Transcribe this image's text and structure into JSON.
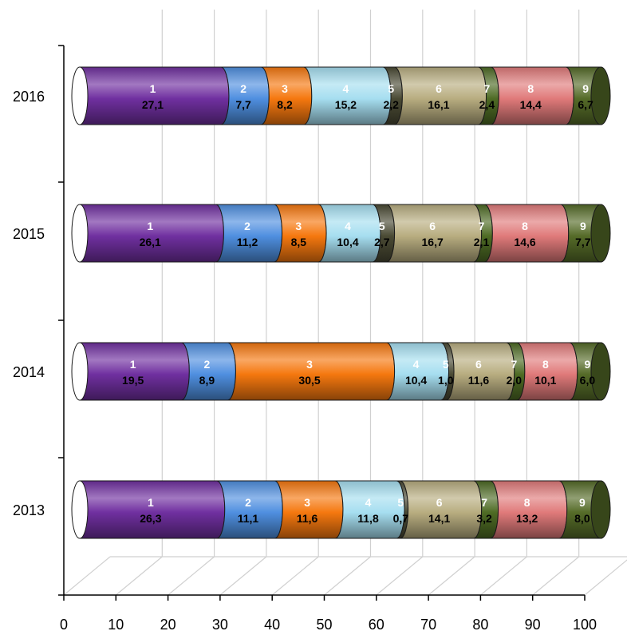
{
  "chart_data": {
    "type": "bar",
    "orientation": "horizontal",
    "stacked": true,
    "style": "3d-cylinder",
    "title": "",
    "xlabel": "",
    "ylabel": "",
    "xlim": [
      0,
      100
    ],
    "x_ticks": [
      "0",
      "10",
      "20",
      "30",
      "40",
      "50",
      "60",
      "70",
      "80",
      "90",
      "100"
    ],
    "categories": [
      "2013",
      "2014",
      "2015",
      "2016"
    ],
    "series": [
      {
        "label": "1",
        "color": "#7030a0",
        "values": [
          "26,3",
          "19,5",
          "26,1",
          "27,1"
        ]
      },
      {
        "label": "2",
        "color": "#4f8fe0",
        "values": [
          "11,1",
          "8,9",
          "11,2",
          "7,7"
        ]
      },
      {
        "label": "3",
        "color": "#f5780f",
        "values": [
          "11,6",
          "30,5",
          "8,5",
          "8,2"
        ]
      },
      {
        "label": "4",
        "color": "#a6def0",
        "values": [
          "11,8",
          "10,4",
          "10,4",
          "15,2"
        ]
      },
      {
        "label": "5",
        "color": "#4a4a34",
        "values": [
          "0,7",
          "1,0",
          "2,7",
          "2,2"
        ]
      },
      {
        "label": "6",
        "color": "#b8ad80",
        "values": [
          "14,1",
          "11,6",
          "16,7",
          "16,1"
        ]
      },
      {
        "label": "7",
        "color": "#4e6b24",
        "values": [
          "3,2",
          "2,0",
          "2,1",
          "2,4"
        ]
      },
      {
        "label": "8",
        "color": "#e07a7a",
        "values": [
          "13,2",
          "10,1",
          "14,6",
          "14,4"
        ]
      },
      {
        "label": "9",
        "color": "#556b28",
        "values": [
          "8,0",
          "6,0",
          "7,7",
          "6,7"
        ]
      }
    ],
    "grid": true,
    "legend": "none"
  }
}
